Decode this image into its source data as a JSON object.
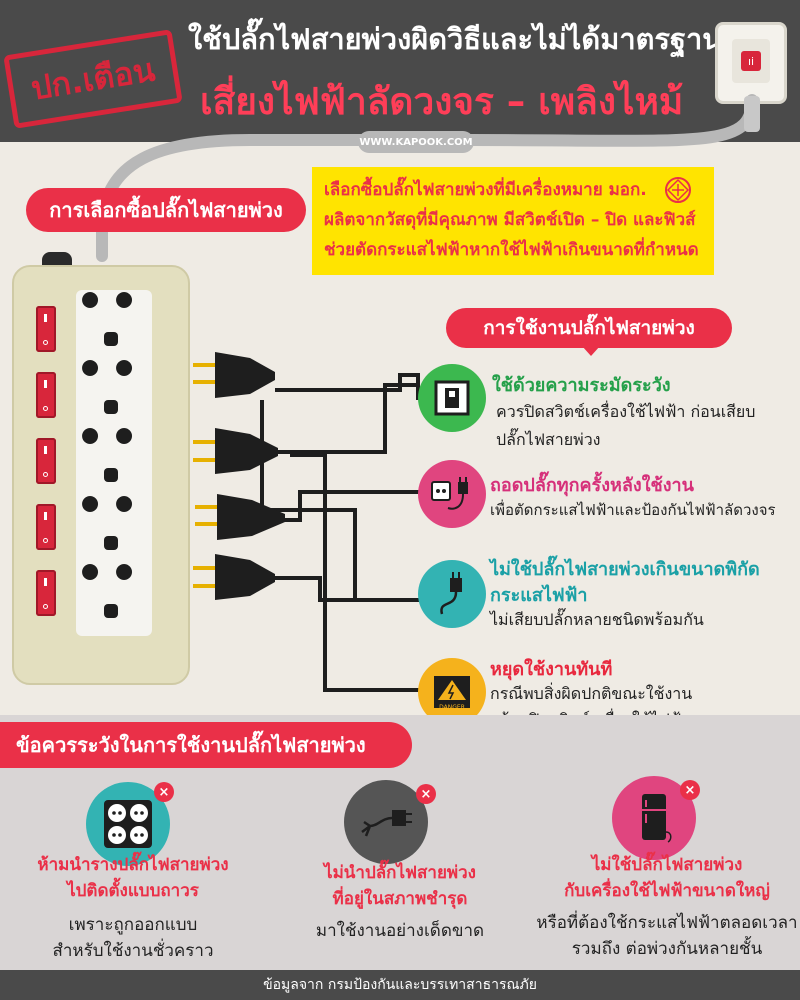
{
  "header": {
    "stamp": "ปก.เตือน",
    "title_line1": "ใช้ปลั๊กไฟสายพ่วงผิดวิธีและไม่ได้มาตรฐาน",
    "title_line2": "เสี่ยงไฟฟ้าลัดวงจร – เพลิงไหม้",
    "website": "WWW.KAPOOK.COM"
  },
  "buying": {
    "title": "การเลือกซื้อปลั๊กไฟสายพ่วง",
    "lines": [
      "เลือกซื้อปลั๊กไฟสายพ่วงที่มีเครื่องหมาย มอก.",
      "ผลิตจากวัสดุที่มีคุณภาพ มีสวิตช์เปิด – ปิด และฟิวส์",
      "ช่วยตัดกระแสไฟฟ้าหากใช้ไฟฟ้าเกินขนาดที่กำหนด"
    ]
  },
  "usage": {
    "title": "การใช้งานปลั๊กไฟสายพ่วง",
    "items": [
      {
        "title": "ใช้ด้วยความระมัดระวัง",
        "lines": [
          "ควรปิดสวิตช์เครื่องใช้ไฟฟ้า ก่อนเสียบ",
          "ปลั๊กไฟสายพ่วง"
        ],
        "title_color": "#25a04a",
        "icon_bg": "#3cb84f",
        "icon": "switch-icon"
      },
      {
        "title": "ถอดปลั๊กทุกครั้งหลังใช้งาน",
        "lines": [
          "เพื่อตัดกระแสไฟฟ้าและป้องกันไฟฟ้าลัดวงจร"
        ],
        "title_color": "#d6307a",
        "icon_bg": "#e0457f",
        "icon": "unplug-icon"
      },
      {
        "title": "ไม่ใช้ปลั๊กไฟสายพ่วงเกินขนาดพิกัด",
        "title2": "กระแสไฟฟ้า",
        "lines": [
          "ไม่เสียบปลั๊กหลายชนิดพร้อมกัน"
        ],
        "title_color": "#1aa0a6",
        "icon_bg": "#33b3b3",
        "icon": "plug-icon"
      },
      {
        "title": "หยุดใช้งานทันที",
        "lines": [
          "กรณีพบสิ่งผิดปกติขณะใช้งาน",
          "พร้อมปิดสวิตช์เครื่องใช้ไฟฟ้า"
        ],
        "title_color": "#e8283e",
        "icon_bg": "#f5b21c",
        "icon": "danger-icon",
        "icon_label": "DANGER"
      }
    ]
  },
  "warnings": {
    "title": "ข้อควรระวังในการใช้งานปลั๊กไฟสายพ่วง",
    "items": [
      {
        "title_lines": [
          "ห้ามนำรางปลั๊กไฟสายพ่วง",
          "ไปติดตั้งแบบถาวร"
        ],
        "text_lines": [
          "เพราะถูกออกแบบ",
          "สำหรับใช้งานชั่วคราว"
        ],
        "icon_bg": "#33b3b3",
        "icon": "outlet-panel-icon"
      },
      {
        "title_lines": [
          "ไม่นำปลั๊กไฟสายพ่วง",
          "ที่อยู่ในสภาพชำรุด"
        ],
        "text_lines": [
          "มาใช้งานอย่างเด็ดขาด"
        ],
        "icon_bg": "#555555",
        "icon": "broken-plug-icon"
      },
      {
        "title_lines": [
          "ไม่ใช้ปลั๊กไฟสายพ่วง",
          "กับเครื่องใช้ไฟฟ้าขนาดใหญ่"
        ],
        "text_lines": [
          "หรือที่ต้องใช้กระแสไฟฟ้าตลอดเวลา",
          "รวมถึง ต่อพ่วงกันหลายชั้น"
        ],
        "icon_bg": "#e0457f",
        "icon": "refrigerator-icon"
      }
    ]
  },
  "footer": {
    "source": "ข้อมูลจาก กรมป้องกันและบรรเทาสาธารณภัย"
  },
  "colors": {
    "accent": "#ea3048",
    "header_bg": "#4a4a4a",
    "highlight": "#ffe400",
    "page_bg": "#efebe4"
  }
}
